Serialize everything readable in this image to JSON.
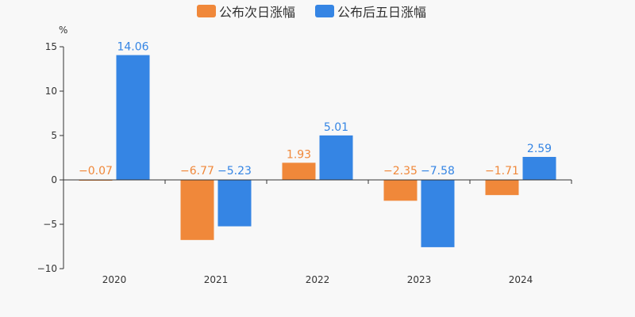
{
  "chart_data": {
    "type": "bar",
    "unit": "%",
    "categories": [
      "2020",
      "2021",
      "2022",
      "2023",
      "2024"
    ],
    "series": [
      {
        "name": "公布次日涨幅",
        "color": "#f0883a",
        "values": [
          -0.07,
          -6.77,
          1.93,
          -2.35,
          -1.71
        ],
        "labels": [
          "−0.07",
          "−6.77",
          "1.93",
          "−2.35",
          "−1.71"
        ]
      },
      {
        "name": "公布后五日涨幅",
        "color": "#3585e4",
        "values": [
          14.06,
          -5.23,
          5.01,
          -7.58,
          2.59
        ],
        "labels": [
          "14.06",
          "−5.23",
          "5.01",
          "−7.58",
          "2.59"
        ]
      }
    ],
    "ylim": [
      -10,
      15
    ],
    "yticks": [
      15,
      10,
      5,
      0,
      -5,
      -10
    ],
    "ytick_labels": [
      "15",
      "10",
      "5",
      "0",
      "−5",
      "−10"
    ],
    "grid": false,
    "legend": "top-center"
  }
}
